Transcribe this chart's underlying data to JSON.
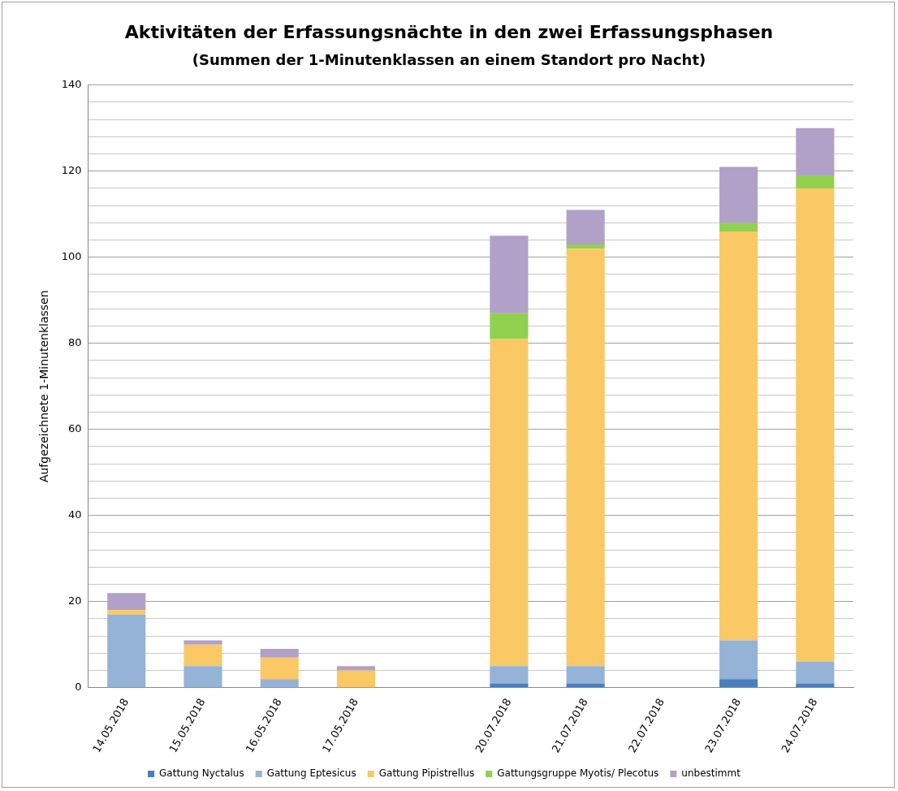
{
  "chart_data": {
    "type": "bar",
    "title": "Aktivitäten der Erfassungsnächte in den zwei Erfassungsphasen",
    "subtitle": "(Summen der 1-Minutenklassen an einem Standort pro Nacht)",
    "ylabel": "Aufgezeichnete 1-Minutenklassen",
    "categories": [
      "14.05.2018",
      "15.05.2018",
      "16.05.2018",
      "17.05.2018",
      null,
      "20.07.2018",
      "21.07.2018",
      "22.07.2018",
      "23.07.2018",
      "24.07.2018"
    ],
    "stacked": true,
    "series": [
      {
        "name": "Gattung Nyctalus",
        "color": "#4a7ebb",
        "values": [
          0,
          0,
          0,
          0,
          null,
          1,
          1,
          0,
          2,
          1
        ]
      },
      {
        "name": "Gattung Eptesicus",
        "color": "#95b3d7",
        "values": [
          17,
          5,
          2,
          0,
          null,
          4,
          4,
          0,
          9,
          5
        ]
      },
      {
        "name": "Gattung Pipistrellus",
        "color": "#fac864",
        "values": [
          1,
          5,
          5,
          4,
          null,
          76,
          97,
          0,
          95,
          110
        ]
      },
      {
        "name": "Gattungsgruppe Myotis/ Plecotus",
        "color": "#92d050",
        "values": [
          0,
          0,
          0,
          0,
          null,
          6,
          1,
          0,
          2,
          3
        ]
      },
      {
        "name": "unbestimmt",
        "color": "#b1a0c7",
        "values": [
          4,
          1,
          2,
          1,
          null,
          18,
          8,
          0,
          13,
          11
        ]
      }
    ],
    "ylim": [
      0,
      140
    ],
    "yticks": [
      0,
      {
        "value": 4,
        "label": null
      },
      {
        "value": 8,
        "label": null
      },
      {
        "value": 12,
        "label": null
      },
      {
        "value": 16,
        "label": null
      },
      20,
      {
        "value": 24,
        "label": null
      },
      {
        "value": 28,
        "label": null
      },
      {
        "value": 32,
        "label": null
      },
      {
        "value": 36,
        "label": null
      },
      40,
      {
        "value": 44,
        "label": null
      },
      {
        "value": 48,
        "label": null
      },
      {
        "value": 52,
        "label": null
      },
      {
        "value": 56,
        "label": null
      },
      60,
      {
        "value": 64,
        "label": null
      },
      {
        "value": 68,
        "label": null
      },
      {
        "value": 72,
        "label": null
      },
      {
        "value": 76,
        "label": null
      },
      80,
      {
        "value": 84,
        "label": null
      },
      {
        "value": 88,
        "label": null
      },
      {
        "value": 92,
        "label": null
      },
      {
        "value": 96,
        "label": null
      },
      100,
      {
        "value": 104,
        "label": null
      },
      {
        "value": 108,
        "label": null
      },
      {
        "value": 112,
        "label": null
      },
      {
        "value": 116,
        "label": null
      },
      120,
      {
        "value": 124,
        "label": null
      },
      {
        "value": 128,
        "label": null
      },
      {
        "value": 132,
        "label": null
      },
      {
        "value": 136,
        "label": null
      },
      140
    ],
    "grid": "y",
    "legend": "bottom"
  }
}
